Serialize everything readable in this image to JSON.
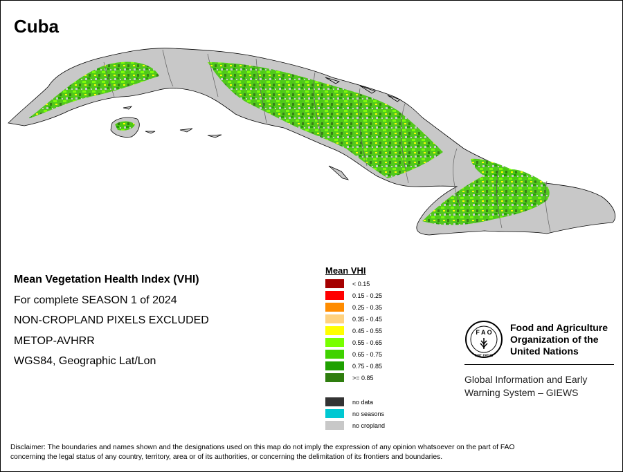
{
  "map": {
    "title": "Cuba",
    "subject": "Cuba island mean VHI map",
    "land_color": "#c8c8c8",
    "boundary_color": "#606060",
    "vhi_cover": "mostly 0.55 - 0.85 with scattered 0.35 - 0.55 patches"
  },
  "info": {
    "line1": "Mean Vegetation Health Index (VHI)",
    "line2": "For complete SEASON 1 of 2024",
    "line3": "NON-CROPLAND PIXELS EXCLUDED",
    "line4": "METOP-AVHRR",
    "line5": "WGS84, Geographic Lat/Lon"
  },
  "legend": {
    "title": "Mean VHI",
    "classes": [
      {
        "label": "< 0.15",
        "color": "#a50000"
      },
      {
        "label": "0.15 - 0.25",
        "color": "#ff0000"
      },
      {
        "label": "0.25 - 0.35",
        "color": "#ff8c00"
      },
      {
        "label": "0.35 - 0.45",
        "color": "#ffd27f"
      },
      {
        "label": "0.45 - 0.55",
        "color": "#ffff00"
      },
      {
        "label": "0.55 - 0.65",
        "color": "#78ff00"
      },
      {
        "label": "0.65 - 0.75",
        "color": "#3fd200"
      },
      {
        "label": "0.75 - 0.85",
        "color": "#1ea000"
      },
      {
        "label": ">= 0.85",
        "color": "#2e7d0e"
      }
    ],
    "extra": [
      {
        "label": "no data",
        "color": "#333333"
      },
      {
        "label": "no seasons",
        "color": "#00c8d2"
      },
      {
        "label": "no cropland",
        "color": "#c8c8c8"
      }
    ]
  },
  "fao": {
    "logo_letters": "FAO",
    "logo_motto": "FIAT PANIS",
    "name_line1": "Food and Agriculture",
    "name_line2": "Organization of the",
    "name_line3": "United Nations",
    "giews_line1": "Global Information and Early",
    "giews_line2": "Warning System – GIEWS"
  },
  "disclaimer": {
    "line1": "Disclaimer: The boundaries and names shown and the designations used on this map do not imply the expression of any opinion whatsoever on the part of FAO",
    "line2": "concerning the legal status of any country, territory, area or of its authorities, or concerning the delimitation of its frontiers and boundaries."
  }
}
